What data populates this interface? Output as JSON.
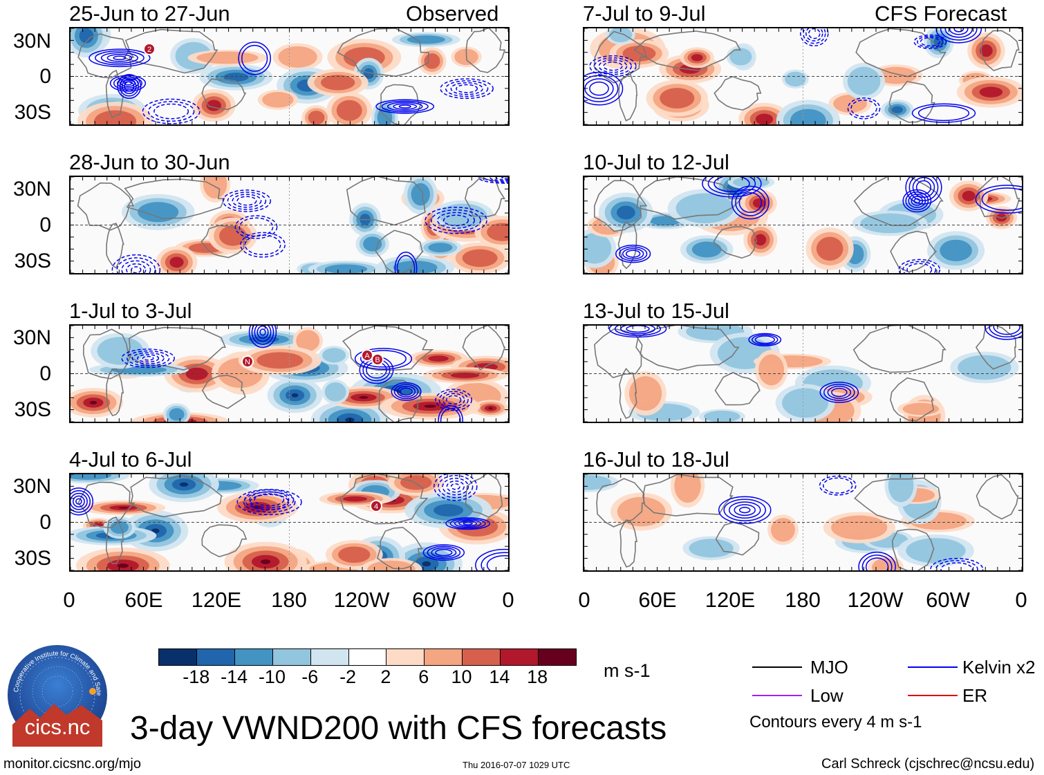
{
  "main_title": "3-day VWND200 with CFS forecasts",
  "column_labels": {
    "observed": "Observed",
    "forecast": "CFS Forecast"
  },
  "observed_panels": [
    {
      "dates": "25-Jun to 27-Jun",
      "markers": [
        "2"
      ]
    },
    {
      "dates": "28-Jun to 30-Jun",
      "markers": []
    },
    {
      "dates": "1-Jul to 3-Jul",
      "markers": [
        "N",
        "A",
        "B"
      ]
    },
    {
      "dates": "4-Jul to 6-Jul",
      "markers": [
        "4"
      ]
    }
  ],
  "forecast_panels": [
    {
      "dates": "7-Jul to 9-Jul"
    },
    {
      "dates": "10-Jul to 12-Jul"
    },
    {
      "dates": "13-Jul to 15-Jul"
    },
    {
      "dates": "16-Jul to 18-Jul"
    }
  ],
  "lat_labels": [
    "30N",
    "0",
    "30S"
  ],
  "lon_labels": [
    "0",
    "60E",
    "120E",
    "180",
    "120W",
    "60W",
    "0"
  ],
  "colorbar": {
    "ticks": [
      "-18",
      "-14",
      "-10",
      "-6",
      "-2",
      "2",
      "6",
      "10",
      "14",
      "18"
    ],
    "colors": [
      "#08306b",
      "#2166ac",
      "#4393c3",
      "#92c5de",
      "#d1e5f0",
      "#ffffff",
      "#fddbc7",
      "#f4a582",
      "#d6604d",
      "#b2182b",
      "#67001f"
    ],
    "units": "m s-1"
  },
  "legend": {
    "items": [
      {
        "label": "MJO",
        "color": "#000000"
      },
      {
        "label": "Kelvin x2",
        "color": "#0000ee"
      },
      {
        "label": "Low",
        "color": "#a020f0"
      },
      {
        "label": "ER",
        "color": "#dd0000"
      }
    ],
    "contour_note": "Contours every 4 m s-1"
  },
  "logo": {
    "text": "cics.nc",
    "ring_text": "Cooperative Institute for Climate and Satellites"
  },
  "footer": {
    "url": "monitor.cicsnc.org/mjo",
    "timestamp": "Thu 2016-07-07 1029 UTC",
    "author": "Carl Schreck (cjschrec@ncsu.edu)"
  }
}
